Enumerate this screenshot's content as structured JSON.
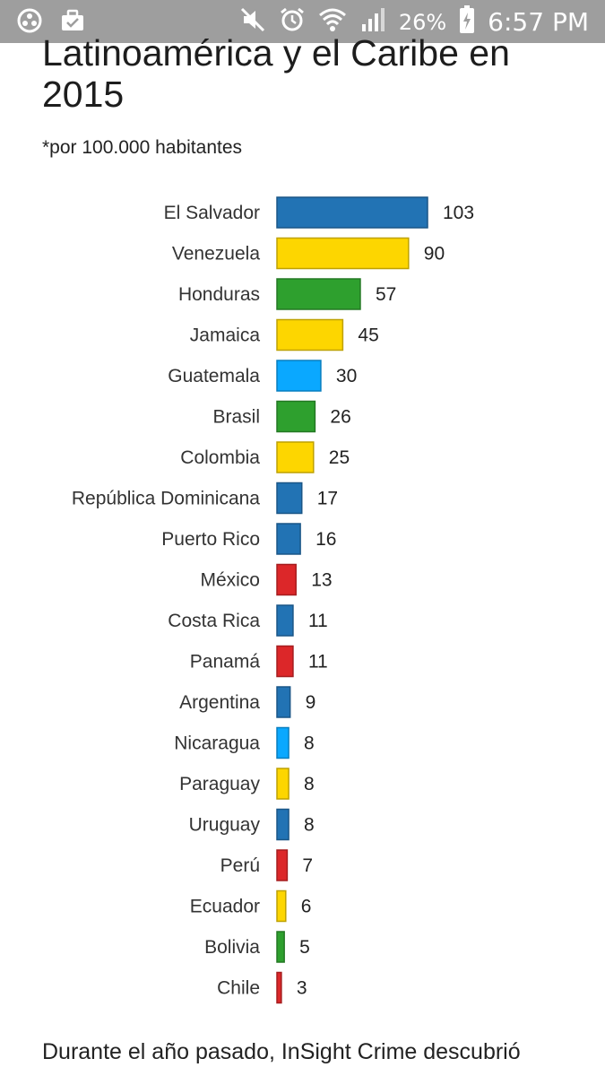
{
  "status_bar": {
    "battery_percent": "26%",
    "time": "6:57 PM",
    "icons": [
      "app-icon",
      "briefcase-icon",
      "mute-icon",
      "alarm-icon",
      "wifi-icon",
      "signal-icon",
      "battery-charging-icon"
    ]
  },
  "article": {
    "title": "Latinoamérica y el Caribe en 2015",
    "subtitle": "*por 100.000 habitantes",
    "body_text": "Durante el año pasado, InSight Crime descubrió"
  },
  "colors": {
    "dark_blue": "#2273b4",
    "yellow": "#fdd600",
    "green": "#2ea02e",
    "light_blue": "#0aa8ff",
    "red": "#dc2729"
  },
  "chart_data": {
    "type": "bar",
    "orientation": "horizontal",
    "categories": [
      "El Salvador",
      "Venezuela",
      "Honduras",
      "Jamaica",
      "Guatemala",
      "Brasil",
      "Colombia",
      "República Dominicana",
      "Puerto Rico",
      "México",
      "Costa Rica",
      "Panamá",
      "Argentina",
      "Nicaragua",
      "Paraguay",
      "Uruguay",
      "Perú",
      "Ecuador",
      "Bolivia",
      "Chile"
    ],
    "values": [
      103,
      90,
      57,
      45,
      30,
      26,
      25,
      17,
      16,
      13,
      11,
      11,
      9,
      8,
      8,
      8,
      7,
      6,
      5,
      3
    ],
    "bar_colors": [
      "#2273b4",
      "#fdd600",
      "#2ea02e",
      "#fdd600",
      "#0aa8ff",
      "#2ea02e",
      "#fdd600",
      "#2273b4",
      "#2273b4",
      "#dc2729",
      "#2273b4",
      "#dc2729",
      "#2273b4",
      "#0aa8ff",
      "#fdd600",
      "#2273b4",
      "#dc2729",
      "#fdd600",
      "#2ea02e",
      "#dc2729"
    ],
    "data_labels": true,
    "grid": false,
    "legend": "none",
    "xlim": [
      0,
      103
    ]
  }
}
